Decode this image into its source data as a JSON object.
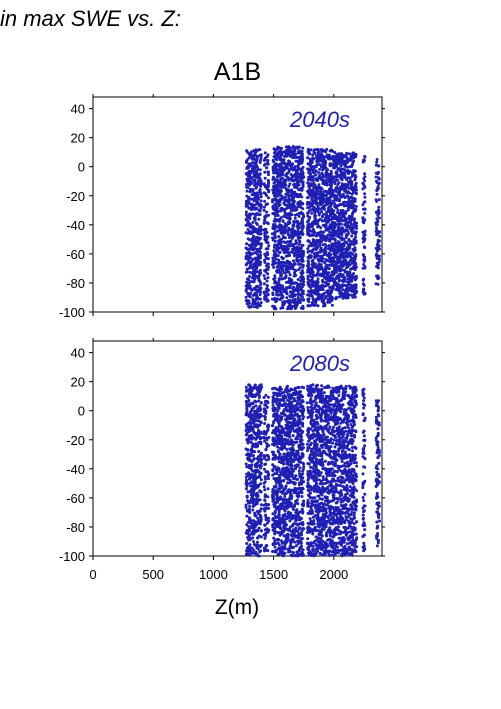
{
  "page": {
    "title": "in max SWE vs. Z:",
    "scenario": "A1B"
  },
  "chart_data": [
    {
      "type": "scatter",
      "title": "2040s",
      "xlabel": "",
      "ylabel": "",
      "xlim": [
        0,
        2400
      ],
      "ylim": [
        -100,
        48
      ],
      "xticks": [
        0,
        500,
        1000,
        1500,
        2000
      ],
      "yticks": [
        40,
        20,
        0,
        -20,
        -40,
        -60,
        -80,
        -100
      ],
      "series": [
        {
          "color": "#1f1fb4",
          "columns": [
            {
              "x_range": [
                1270,
                1400
              ],
              "y_range": [
                -97,
                12
              ],
              "density": "high"
            },
            {
              "x_range": [
                1420,
                1460
              ],
              "y_range": [
                -93,
                10
              ],
              "density": "low"
            },
            {
              "x_range": [
                1490,
                1750
              ],
              "y_range": [
                -98,
                14
              ],
              "density": "high"
            },
            {
              "x_range": [
                1780,
                2000
              ],
              "y_range": [
                -96,
                12
              ],
              "density": "high"
            },
            {
              "x_range": [
                2000,
                2190
              ],
              "y_range": [
                -91,
                10
              ],
              "density": "high"
            },
            {
              "x_range": [
                2240,
                2260
              ],
              "y_range": [
                -90,
                8
              ],
              "density": "low"
            },
            {
              "x_range": [
                2350,
                2380
              ],
              "y_range": [
                -82,
                5
              ],
              "density": "low"
            }
          ]
        }
      ]
    },
    {
      "type": "scatter",
      "title": "2080s",
      "xlabel": "Z(m)",
      "ylabel": "",
      "xlim": [
        0,
        2400
      ],
      "ylim": [
        -100,
        48
      ],
      "xticks": [
        0,
        500,
        1000,
        1500,
        2000
      ],
      "xtick_labels": [
        "0",
        "500",
        "1000",
        "1500",
        "2000"
      ],
      "yticks": [
        40,
        20,
        0,
        -20,
        -40,
        -60,
        -80,
        -100
      ],
      "series": [
        {
          "color": "#1f1fb4",
          "columns": [
            {
              "x_range": [
                1270,
                1400
              ],
              "y_range": [
                -100,
                18
              ],
              "density": "high"
            },
            {
              "x_range": [
                1420,
                1460
              ],
              "y_range": [
                -98,
                12
              ],
              "density": "low"
            },
            {
              "x_range": [
                1490,
                1750
              ],
              "y_range": [
                -100,
                17
              ],
              "density": "high"
            },
            {
              "x_range": [
                1780,
                2000
              ],
              "y_range": [
                -100,
                18
              ],
              "density": "high"
            },
            {
              "x_range": [
                2000,
                2190
              ],
              "y_range": [
                -100,
                17
              ],
              "density": "high"
            },
            {
              "x_range": [
                2240,
                2260
              ],
              "y_range": [
                -97,
                16
              ],
              "density": "low"
            },
            {
              "x_range": [
                2350,
                2380
              ],
              "y_range": [
                -95,
                10
              ],
              "density": "low"
            }
          ]
        }
      ]
    }
  ]
}
